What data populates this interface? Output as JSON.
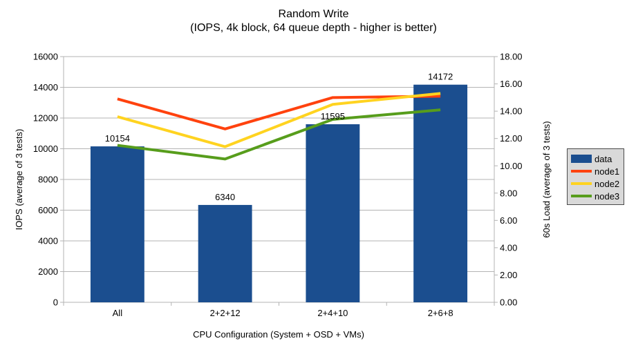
{
  "chart": {
    "title": "Random Write",
    "subtitle": "(IOPS, 4k block, 64 queue depth - higher is better)"
  },
  "chart_data": {
    "type": "bar",
    "combo": "bars (left axis) + lines (right axis)",
    "title": "Random Write",
    "subtitle": "(IOPS, 4k block, 64 queue depth - higher is better)",
    "categories": [
      "All",
      "2+2+12",
      "2+4+10",
      "2+6+8"
    ],
    "bar_series": {
      "name": "data",
      "axis": "left",
      "color": "#1B4E8F",
      "values": [
        10154,
        6340,
        11595,
        14172
      ],
      "data_labels": [
        "10154",
        "6340",
        "11595",
        "14172"
      ]
    },
    "line_series": [
      {
        "name": "node1",
        "axis": "right",
        "color": "#FF420E",
        "values": [
          14.9,
          12.7,
          15.0,
          15.1
        ]
      },
      {
        "name": "node2",
        "axis": "right",
        "color": "#FFD320",
        "values": [
          13.6,
          11.4,
          14.5,
          15.3
        ]
      },
      {
        "name": "node3",
        "axis": "right",
        "color": "#579D1C",
        "values": [
          11.5,
          10.5,
          13.4,
          14.1
        ]
      }
    ],
    "x_axis": {
      "title": "CPU Configuration (System + OSD + VMs)"
    },
    "left_axis": {
      "title": "IOPS (average of 3 tests)",
      "min": 0,
      "max": 16000,
      "step": 2000,
      "tick_labels": [
        "0",
        "2000",
        "4000",
        "6000",
        "8000",
        "10000",
        "12000",
        "14000",
        "16000"
      ]
    },
    "right_axis": {
      "title": "60s Load (average of 3 tests)",
      "min": 0,
      "max": 18,
      "step": 2,
      "tick_labels": [
        "0.00",
        "2.00",
        "4.00",
        "6.00",
        "8.00",
        "10.00",
        "12.00",
        "14.00",
        "16.00",
        "18.00"
      ]
    },
    "legend": {
      "position": "right",
      "items": [
        {
          "label": "data",
          "type": "box",
          "color": "#1B4E8F"
        },
        {
          "label": "node1",
          "type": "line",
          "color": "#FF420E"
        },
        {
          "label": "node2",
          "type": "line",
          "color": "#FFD320"
        },
        {
          "label": "node3",
          "type": "line",
          "color": "#579D1C"
        }
      ]
    },
    "grid": true,
    "grid_color": "#B3B3B3",
    "axis_color": "#B3B3B3",
    "text_color": "#000000",
    "background": "#FFFFFF"
  }
}
